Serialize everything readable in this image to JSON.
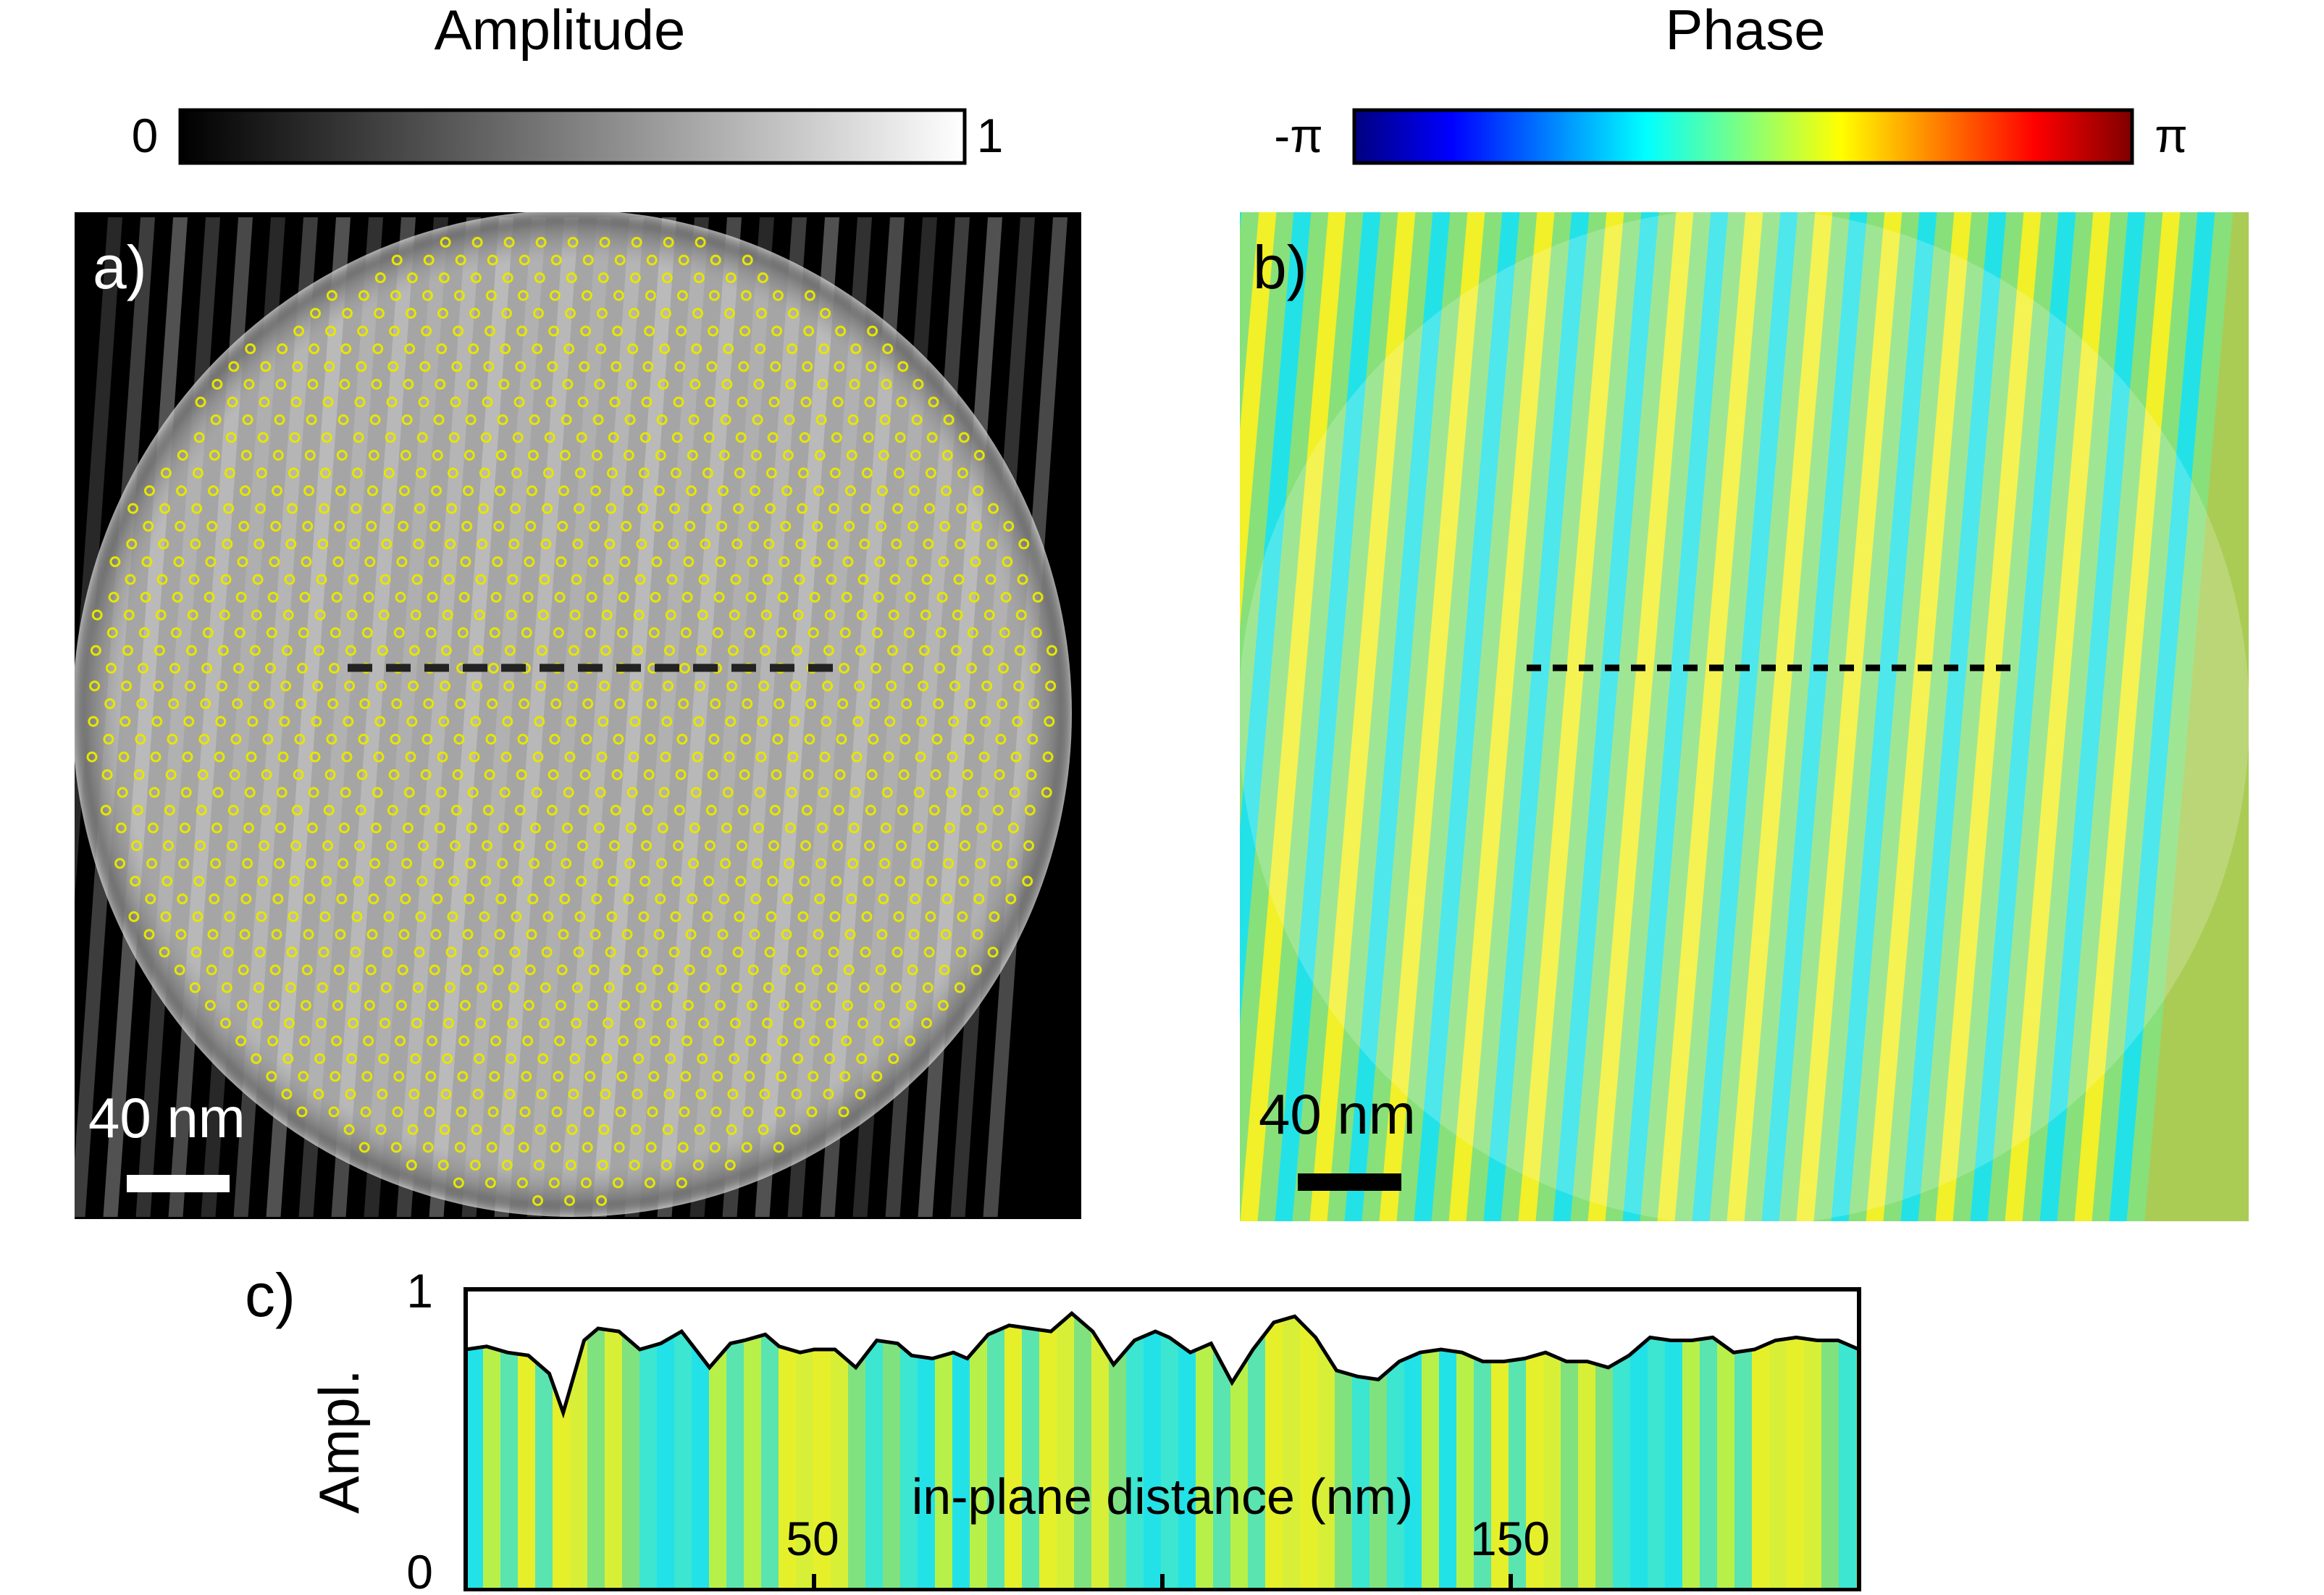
{
  "colorbars": {
    "amplitude": {
      "title": "Amplitude",
      "min_label": "0",
      "max_label": "1",
      "scheme": [
        "#000000",
        "#ffffff"
      ]
    },
    "phase": {
      "title": "Phase",
      "min_label": "-π",
      "max_label": "π",
      "scheme": [
        "#00007f",
        "#0000ff",
        "#007fff",
        "#00ffff",
        "#7fff7f",
        "#ffff00",
        "#ff7f00",
        "#ff0000",
        "#7f0000"
      ]
    }
  },
  "panels": {
    "a": {
      "label": "a)",
      "scale_bar": "40 nm",
      "marker_color": "#e6e600"
    },
    "b": {
      "label": "b)",
      "scale_bar": "40 nm"
    },
    "c": {
      "label": "c)",
      "ylabel": "Ampl.",
      "xlabel": "in-plane distance (nm)",
      "ytick_min": "0",
      "ytick_max": "1",
      "xtick_labels": [
        "50",
        "150"
      ]
    }
  },
  "chart_data": {
    "type": "area",
    "xlabel": "in-plane distance (nm)",
    "ylabel": "Ampl.",
    "xlim": [
      0,
      200
    ],
    "ylim": [
      0,
      1
    ],
    "xticks": [
      50,
      100,
      150
    ],
    "yticks": [
      0,
      1
    ],
    "x": [
      0,
      3,
      6,
      9,
      12,
      14,
      17,
      19,
      22,
      25,
      28,
      31,
      33,
      35,
      38,
      40,
      43,
      45,
      48,
      50,
      53,
      56,
      59,
      62,
      64,
      67,
      70,
      72,
      75,
      78,
      81,
      84,
      87,
      90,
      93,
      96,
      99,
      101,
      104,
      107,
      110,
      113,
      116,
      119,
      122,
      125,
      128,
      131,
      134,
      137,
      140,
      143,
      146,
      149,
      152,
      155,
      158,
      161,
      164,
      167,
      170,
      173,
      176,
      179,
      182,
      185,
      188,
      191,
      194,
      197,
      200
    ],
    "values": [
      0.8,
      0.81,
      0.79,
      0.78,
      0.72,
      0.59,
      0.83,
      0.87,
      0.86,
      0.8,
      0.82,
      0.86,
      0.8,
      0.74,
      0.82,
      0.83,
      0.85,
      0.81,
      0.79,
      0.8,
      0.8,
      0.74,
      0.83,
      0.82,
      0.78,
      0.77,
      0.79,
      0.77,
      0.85,
      0.88,
      0.87,
      0.86,
      0.92,
      0.86,
      0.75,
      0.83,
      0.86,
      0.84,
      0.79,
      0.82,
      0.69,
      0.8,
      0.89,
      0.91,
      0.84,
      0.73,
      0.71,
      0.7,
      0.76,
      0.79,
      0.8,
      0.79,
      0.76,
      0.76,
      0.77,
      0.79,
      0.76,
      0.76,
      0.74,
      0.78,
      0.84,
      0.83,
      0.83,
      0.84,
      0.79,
      0.8,
      0.83,
      0.84,
      0.83,
      0.83,
      0.8
    ]
  }
}
